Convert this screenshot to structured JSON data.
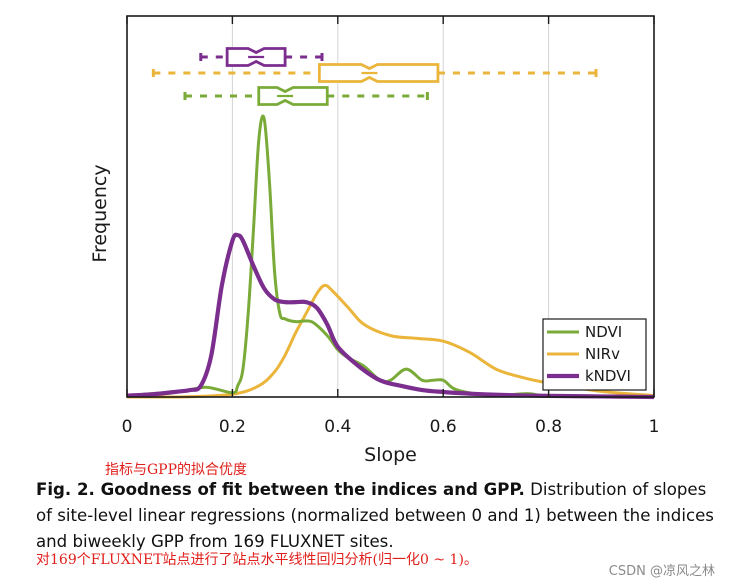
{
  "chart_data": {
    "type": "line",
    "xlabel": "Slope",
    "ylabel": "Frequency",
    "xlim": [
      0,
      1
    ],
    "xticks": [
      "0",
      "0.2",
      "0.4",
      "0.6",
      "0.8",
      "1"
    ],
    "grid": "vertical",
    "legend_position": "bottom-right",
    "series": [
      {
        "name": "NDVI",
        "color": "#7aab39",
        "x": [
          0,
          0.1,
          0.15,
          0.2,
          0.21,
          0.22,
          0.23,
          0.24,
          0.25,
          0.26,
          0.27,
          0.28,
          0.29,
          0.3,
          0.32,
          0.35,
          0.38,
          0.4,
          0.42,
          0.45,
          0.48,
          0.5,
          0.53,
          0.56,
          0.58,
          0.6,
          0.62,
          0.65,
          0.7,
          0.76,
          0.8,
          0.9,
          1.0
        ],
        "y": [
          0.005,
          0.02,
          0.035,
          0.015,
          0.04,
          0.1,
          0.3,
          0.6,
          0.92,
          1.0,
          0.78,
          0.45,
          0.3,
          0.28,
          0.27,
          0.27,
          0.22,
          0.17,
          0.14,
          0.11,
          0.06,
          0.06,
          0.1,
          0.06,
          0.06,
          0.06,
          0.03,
          0.015,
          0.005,
          0.012,
          0.003,
          0.003,
          0.0
        ]
      },
      {
        "name": "NIRv",
        "color": "#eab53a",
        "x": [
          0,
          0.1,
          0.2,
          0.25,
          0.28,
          0.3,
          0.32,
          0.34,
          0.36,
          0.375,
          0.39,
          0.42,
          0.45,
          0.5,
          0.55,
          0.6,
          0.65,
          0.7,
          0.75,
          0.8,
          0.9,
          1.0
        ],
        "y": [
          0,
          0.0,
          0.01,
          0.04,
          0.09,
          0.15,
          0.23,
          0.3,
          0.37,
          0.4,
          0.38,
          0.32,
          0.26,
          0.22,
          0.21,
          0.2,
          0.16,
          0.1,
          0.07,
          0.05,
          0.02,
          0.005
        ]
      },
      {
        "name": "kNDVI",
        "color": "#7b2e8e",
        "x": [
          0,
          0.05,
          0.1,
          0.12,
          0.14,
          0.16,
          0.18,
          0.2,
          0.21,
          0.22,
          0.24,
          0.26,
          0.28,
          0.3,
          0.32,
          0.34,
          0.36,
          0.38,
          0.4,
          0.44,
          0.48,
          0.52,
          0.56,
          0.6,
          0.65,
          0.7,
          0.8,
          0.9,
          1.0
        ],
        "y": [
          0.005,
          0.01,
          0.02,
          0.025,
          0.04,
          0.15,
          0.4,
          0.56,
          0.58,
          0.56,
          0.47,
          0.39,
          0.35,
          0.34,
          0.34,
          0.34,
          0.32,
          0.26,
          0.18,
          0.11,
          0.06,
          0.04,
          0.025,
          0.018,
          0.012,
          0.008,
          0.004,
          0.002,
          0.0
        ]
      }
    ],
    "boxplots": [
      {
        "name": "kNDVI",
        "color": "#7b2e8e",
        "whisker_low": 0.14,
        "q1": 0.19,
        "median": 0.245,
        "q3": 0.3,
        "whisker_high": 0.37
      },
      {
        "name": "NIRv",
        "color": "#eab53a",
        "whisker_low": 0.05,
        "q1": 0.365,
        "median": 0.46,
        "q3": 0.59,
        "whisker_high": 0.89
      },
      {
        "name": "NDVI",
        "color": "#7aab39",
        "whisker_low": 0.11,
        "q1": 0.25,
        "median": 0.3,
        "q3": 0.38,
        "whisker_high": 0.57
      }
    ]
  },
  "annotations": {
    "cn_title": "指标与GPP的拟合优度",
    "cn_desc": "对169个FLUXNET站点进行了站点水平线性回归分析(归一化0 ~ 1)。"
  },
  "caption": {
    "bold": "Fig. 2. Goodness of fit between the indices and GPP.",
    "text": " Distribution of slopes of site-level linear regressions (normalized between 0 and 1) between the indices and biweekly GPP from 169 FLUXNET sites."
  },
  "watermark": "CSDN @凉风之林"
}
